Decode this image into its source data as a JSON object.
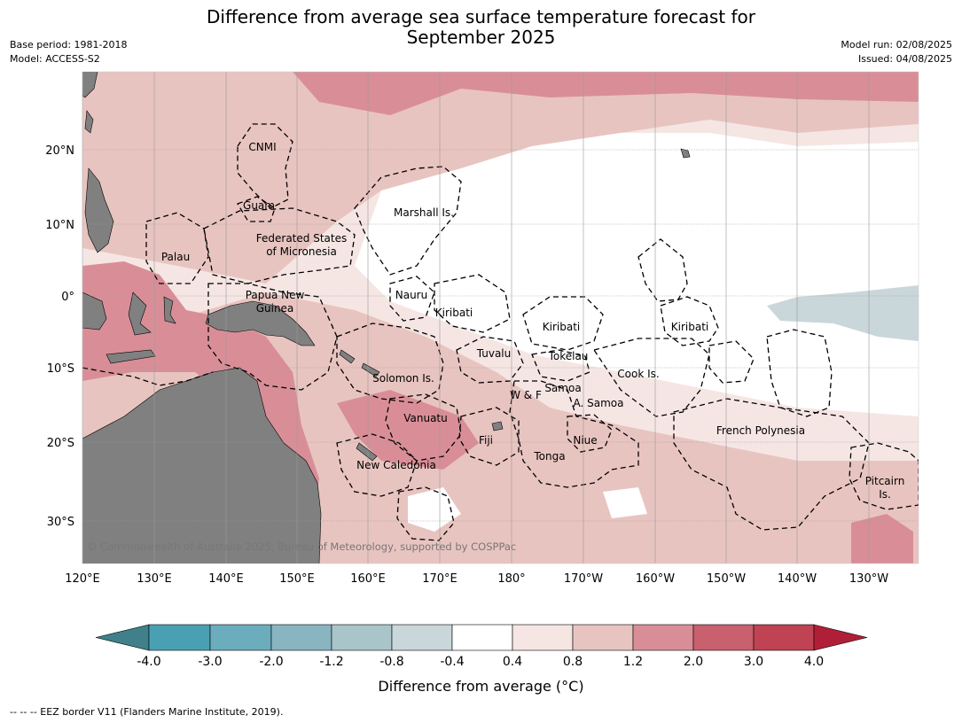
{
  "title_line1": "Difference from average sea surface temperature forecast for",
  "title_line2": "September 2025",
  "base_period": "Base period: 1981-2018",
  "model": "Model: ACCESS-S2",
  "model_run": "Model run: 02/08/2025",
  "issued": "Issued: 04/08/2025",
  "lat_labels": [
    "20°N",
    "10°N",
    "0°",
    "10°S",
    "20°S",
    "30°S"
  ],
  "lon_labels": [
    "120°E",
    "130°E",
    "140°E",
    "150°E",
    "160°E",
    "170°E",
    "180°",
    "170°W",
    "160°W",
    "150°W",
    "140°W",
    "130°W"
  ],
  "regions": [
    "CNMI",
    "Guam",
    "Marshall Is.",
    "Federated States",
    "of Micronesia",
    "Palau",
    "Nauru",
    "Papua New",
    "Guinea",
    "Kiribati",
    "Kiribati",
    "Kiribati",
    "Tuvalu",
    "Tokelau",
    "Solomon Is.",
    "Cook Is.",
    "Samoa",
    "W & F",
    "A. Samoa",
    "Vanuatu",
    "Fiji",
    "Niue",
    "French Polynesia",
    "Tonga",
    "New Caledonia",
    "Pitcairn",
    "Is."
  ],
  "copyright": "© Commonwealth of Australia 2025, Bureau of Meteorology, supported by COSPPac",
  "colorbar": {
    "ticks": [
      "-4.0",
      "-3.0",
      "-2.0",
      "-1.2",
      "-0.8",
      "-0.4",
      "0.4",
      "0.8",
      "1.2",
      "2.0",
      "3.0",
      "4.0"
    ],
    "colors": [
      "#4aa0b3",
      "#6badbd",
      "#89b5c1",
      "#a8c5ca",
      "#c9d7da",
      "#ffffff",
      "#f5e6e4",
      "#e8c4c0",
      "#d98e97",
      "#c8606d",
      "#bf4352"
    ],
    "extend_low": "#3f808b",
    "extend_high": "#b01f38",
    "label": "Difference from average (°C)"
  },
  "footnote": "--  --  -- EEZ border V11 (Flanders Marine Institute, 2019).",
  "colors": {
    "land": "#808080",
    "grid": "#888888",
    "eez": "#000000"
  }
}
